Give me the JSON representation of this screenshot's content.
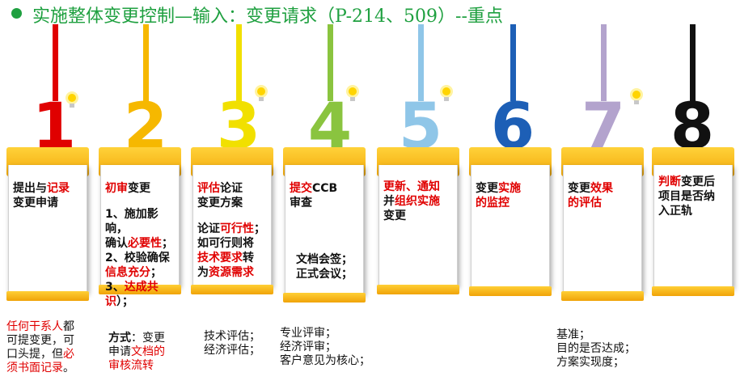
{
  "title": "实施整体变更控制—输入：变更请求（P-214、509）--重点",
  "colors": {
    "title": "#1fa040",
    "step1": "#e00000",
    "step2": "#f6b800",
    "step3": "#f1e000",
    "step4": "#8ac43f",
    "step5": "#8fc6e8",
    "step6": "#1d5fb6",
    "step7": "#b3a3cd",
    "step8": "#111111",
    "card_gold": "#f6b800",
    "highlight": "#e00000"
  },
  "steps": [
    {
      "num": "1",
      "t1": "提出与",
      "t1r": "记录",
      "t2": "变更申请"
    },
    {
      "num": "2",
      "h_red": "初审",
      "h_black": "变更",
      "b1": "1、施加影响，",
      "b2a": "确认",
      "b2r": "必要性",
      "b2b": "；",
      "b3": "2、校验确保",
      "b4r": "信息充分",
      "b4b": "；",
      "b5": "3、",
      "b5r": "达成共识",
      "b5b": "）；"
    },
    {
      "num": "3",
      "h_red": "评估",
      "h_black": "论证",
      "h2": "变更方案",
      "b1a": "论证",
      "b1r": "可行性",
      "b1b": "；",
      "b2": "如可行则将",
      "b3r": "技术要求",
      "b3b": "转",
      "b4a": "为",
      "b4r": "资源需求"
    },
    {
      "num": "4",
      "h_red": "提交",
      "h_black": "CCB",
      "h2": "审查",
      "b1": "文档会签；",
      "b2": "正式会议；"
    },
    {
      "num": "5",
      "l1": "更新、通知",
      "l2a": "并",
      "l2r": "组织实施",
      "l3": "变更"
    },
    {
      "num": "6",
      "h_black": "变更",
      "h_red": "实施",
      "h2r": "的监控"
    },
    {
      "num": "7",
      "h_black": "变更",
      "h_red": "效果",
      "h2r": "的评估"
    },
    {
      "num": "8",
      "h_red": "判断",
      "h_black": "变更后",
      "h2": "项目是否纳",
      "h3": "入正轨"
    }
  ],
  "notes": {
    "n1": {
      "l1r": "任何干系人",
      "l1b": "都",
      "l2": "可提变更，可",
      "l3a": "口头提，但",
      "l3r": "必",
      "l4r": "须书面记录",
      "l4b": "。"
    },
    "n2": {
      "l1a": "方式",
      "l1b": "：变更",
      "l2a": "申请",
      "l2r": "文档的",
      "l3r": "审核流转"
    },
    "n3": {
      "l1": "技术评估；",
      "l2": "经济评估；"
    },
    "n4": {
      "l1": "专业评审；",
      "l2": "经济评审；",
      "l3": "客户意见为核心；"
    },
    "n7": {
      "l1": "基准；",
      "l2": "目的是否达成；",
      "l3": "方案实现度；"
    }
  }
}
